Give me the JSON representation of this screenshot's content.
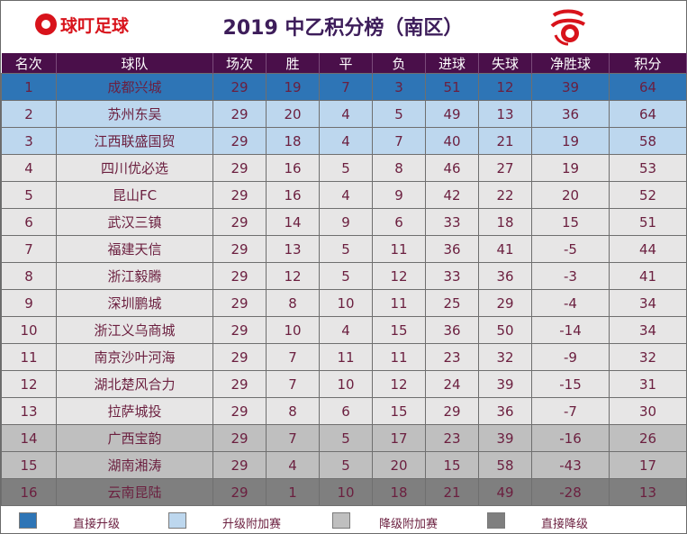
{
  "header": {
    "brand": "球叮足球",
    "title": "2019 中乙积分榜（南区）"
  },
  "columns": [
    "名次",
    "球队",
    "场次",
    "胜",
    "平",
    "负",
    "进球",
    "失球",
    "净胜球",
    "积分"
  ],
  "rows": [
    {
      "rank": "1",
      "team": "成都兴城",
      "played": "29",
      "won": "19",
      "drawn": "7",
      "lost": "3",
      "gf": "51",
      "ga": "12",
      "gd": "39",
      "pts": "64",
      "zone": "promote"
    },
    {
      "rank": "2",
      "team": "苏州东吴",
      "played": "29",
      "won": "20",
      "drawn": "4",
      "lost": "5",
      "gf": "49",
      "ga": "13",
      "gd": "36",
      "pts": "64",
      "zone": "playoff-up"
    },
    {
      "rank": "3",
      "team": "江西联盛国贸",
      "played": "29",
      "won": "18",
      "drawn": "4",
      "lost": "7",
      "gf": "40",
      "ga": "21",
      "gd": "19",
      "pts": "58",
      "zone": "playoff-up"
    },
    {
      "rank": "4",
      "team": "四川优必选",
      "played": "29",
      "won": "16",
      "drawn": "5",
      "lost": "8",
      "gf": "46",
      "ga": "27",
      "gd": "19",
      "pts": "53",
      "zone": "normal"
    },
    {
      "rank": "5",
      "team": "昆山FC",
      "played": "29",
      "won": "16",
      "drawn": "4",
      "lost": "9",
      "gf": "42",
      "ga": "22",
      "gd": "20",
      "pts": "52",
      "zone": "normal"
    },
    {
      "rank": "6",
      "team": "武汉三镇",
      "played": "29",
      "won": "14",
      "drawn": "9",
      "lost": "6",
      "gf": "33",
      "ga": "18",
      "gd": "15",
      "pts": "51",
      "zone": "normal"
    },
    {
      "rank": "7",
      "team": "福建天信",
      "played": "29",
      "won": "13",
      "drawn": "5",
      "lost": "11",
      "gf": "36",
      "ga": "41",
      "gd": "-5",
      "pts": "44",
      "zone": "normal"
    },
    {
      "rank": "8",
      "team": "浙江毅腾",
      "played": "29",
      "won": "12",
      "drawn": "5",
      "lost": "12",
      "gf": "33",
      "ga": "36",
      "gd": "-3",
      "pts": "41",
      "zone": "normal"
    },
    {
      "rank": "9",
      "team": "深圳鹏城",
      "played": "29",
      "won": "8",
      "drawn": "10",
      "lost": "11",
      "gf": "25",
      "ga": "29",
      "gd": "-4",
      "pts": "34",
      "zone": "normal"
    },
    {
      "rank": "10",
      "team": "浙江义乌商城",
      "played": "29",
      "won": "10",
      "drawn": "4",
      "lost": "15",
      "gf": "36",
      "ga": "50",
      "gd": "-14",
      "pts": "34",
      "zone": "normal"
    },
    {
      "rank": "11",
      "team": "南京沙叶河海",
      "played": "29",
      "won": "7",
      "drawn": "11",
      "lost": "11",
      "gf": "23",
      "ga": "32",
      "gd": "-9",
      "pts": "32",
      "zone": "normal"
    },
    {
      "rank": "12",
      "team": "湖北楚风合力",
      "played": "29",
      "won": "7",
      "drawn": "10",
      "lost": "12",
      "gf": "24",
      "ga": "39",
      "gd": "-15",
      "pts": "31",
      "zone": "normal"
    },
    {
      "rank": "13",
      "team": "拉萨城投",
      "played": "29",
      "won": "8",
      "drawn": "6",
      "lost": "15",
      "gf": "29",
      "ga": "36",
      "gd": "-7",
      "pts": "30",
      "zone": "normal"
    },
    {
      "rank": "14",
      "team": "广西宝韵",
      "played": "29",
      "won": "7",
      "drawn": "5",
      "lost": "17",
      "gf": "23",
      "ga": "39",
      "gd": "-16",
      "pts": "26",
      "zone": "playoff-down"
    },
    {
      "rank": "15",
      "team": "湖南湘涛",
      "played": "29",
      "won": "4",
      "drawn": "5",
      "lost": "20",
      "gf": "15",
      "ga": "58",
      "gd": "-43",
      "pts": "17",
      "zone": "playoff-down"
    },
    {
      "rank": "16",
      "team": "云南昆陆",
      "played": "29",
      "won": "1",
      "drawn": "10",
      "lost": "18",
      "gf": "21",
      "ga": "49",
      "gd": "-28",
      "pts": "13",
      "zone": "relegate"
    }
  ],
  "legend": [
    {
      "label": "直接升级",
      "color": "#2e75b6"
    },
    {
      "label": "升级附加赛",
      "color": "#bdd7ee"
    },
    {
      "label": "降级附加赛",
      "color": "#bfbfbf"
    },
    {
      "label": "直接降级",
      "color": "#7f7f7f"
    }
  ],
  "colors": {
    "header_bg": "#4a0f4a",
    "title_text": "#3d1d5a",
    "cell_text": "#6b1f3f",
    "brand_red": "#d8131b"
  }
}
